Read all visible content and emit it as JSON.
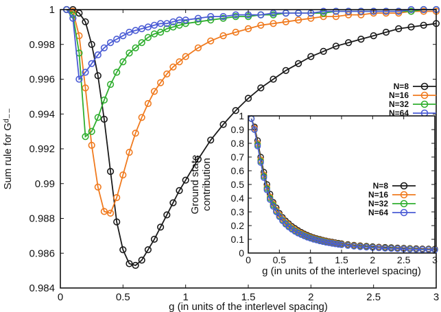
{
  "chart_data": [
    {
      "type": "line",
      "xlabel": "g (in units of the interlevel spacing)",
      "ylabel": "Sum rule for Gᵈ₋₋",
      "xlim": [
        0,
        3
      ],
      "ylim": [
        0.984,
        1
      ],
      "xticks": [
        "0",
        "0.5",
        "1",
        "1.5",
        "2",
        "2.5",
        "3"
      ],
      "yticks": [
        "0.984",
        "0.986",
        "0.988",
        "0.99",
        "0.992",
        "0.994",
        "0.996",
        "0.998",
        "1"
      ],
      "legend_position": "right",
      "series": [
        {
          "name": "N=8",
          "color": "#1a1a1a",
          "x": [
            0.05,
            0.1,
            0.15,
            0.2,
            0.25,
            0.3,
            0.35,
            0.4,
            0.45,
            0.5,
            0.55,
            0.6,
            0.65,
            0.7,
            0.75,
            0.8,
            0.85,
            0.9,
            0.95,
            1.0,
            1.1,
            1.2,
            1.3,
            1.4,
            1.5,
            1.6,
            1.7,
            1.8,
            1.9,
            2.0,
            2.1,
            2.2,
            2.3,
            2.4,
            2.5,
            2.6,
            2.7,
            2.8,
            2.9,
            3.0
          ],
          "y": [
            1.0,
            1.0,
            0.9998,
            0.9993,
            0.998,
            0.9962,
            0.9937,
            0.9907,
            0.9878,
            0.9862,
            0.9854,
            0.9853,
            0.9856,
            0.9862,
            0.9868,
            0.9875,
            0.9882,
            0.9889,
            0.9896,
            0.9902,
            0.9914,
            0.9925,
            0.9934,
            0.9942,
            0.9949,
            0.9955,
            0.996,
            0.9965,
            0.9969,
            0.9973,
            0.9976,
            0.9979,
            0.9981,
            0.9983,
            0.9985,
            0.9987,
            0.9989,
            0.999,
            0.9991,
            0.9992
          ]
        },
        {
          "name": "N=16",
          "color": "#f07a1e",
          "x": [
            0.05,
            0.1,
            0.15,
            0.2,
            0.25,
            0.3,
            0.35,
            0.4,
            0.45,
            0.5,
            0.55,
            0.6,
            0.65,
            0.7,
            0.75,
            0.8,
            0.85,
            0.9,
            0.95,
            1.0,
            1.1,
            1.2,
            1.3,
            1.4,
            1.5,
            1.6,
            1.7,
            1.8,
            1.9,
            2.0,
            2.1,
            2.2,
            2.3,
            2.4,
            2.5,
            2.6,
            2.7,
            2.8,
            2.9,
            3.0
          ],
          "y": [
            1.0,
            0.9999,
            0.9985,
            0.9955,
            0.9922,
            0.9898,
            0.9884,
            0.9883,
            0.9892,
            0.9905,
            0.9918,
            0.9929,
            0.9938,
            0.9946,
            0.9953,
            0.9958,
            0.9963,
            0.9967,
            0.997,
            0.9973,
            0.9978,
            0.9982,
            0.9985,
            0.9987,
            0.9989,
            0.9991,
            0.9992,
            0.9993,
            0.9994,
            0.9995,
            0.9996,
            0.9996,
            0.9997,
            0.9997,
            0.9998,
            0.9998,
            0.9998,
            0.9999,
            0.9999,
            0.9999
          ]
        },
        {
          "name": "N=32",
          "color": "#2fae2f",
          "x": [
            0.05,
            0.1,
            0.15,
            0.2,
            0.25,
            0.3,
            0.35,
            0.4,
            0.45,
            0.5,
            0.55,
            0.6,
            0.65,
            0.7,
            0.75,
            0.8,
            0.85,
            0.9,
            0.95,
            1.0,
            1.1,
            1.2,
            1.3,
            1.4,
            1.5,
            1.6,
            1.7,
            1.8,
            1.9,
            2.0,
            2.1,
            2.2,
            2.3,
            2.4,
            2.5,
            2.6,
            2.7,
            2.8,
            2.9,
            3.0
          ],
          "y": [
            1.0,
            0.9997,
            0.9975,
            0.9927,
            0.993,
            0.9938,
            0.9948,
            0.9957,
            0.9964,
            0.997,
            0.9975,
            0.9978,
            0.9981,
            0.9984,
            0.9986,
            0.9987,
            0.9989,
            0.999,
            0.9991,
            0.9992,
            0.9993,
            0.9994,
            0.9995,
            0.9996,
            0.9996,
            0.9997,
            0.9997,
            0.9998,
            0.9998,
            0.9998,
            0.9998,
            0.9999,
            0.9999,
            0.9999,
            0.9999,
            0.9999,
            0.9999,
            0.9999,
            1.0,
            1.0
          ]
        },
        {
          "name": "N=64",
          "color": "#4a5bd4",
          "x": [
            0.05,
            0.1,
            0.15,
            0.2,
            0.25,
            0.3,
            0.35,
            0.4,
            0.45,
            0.5,
            0.55,
            0.6,
            0.65,
            0.7,
            0.75,
            0.8,
            0.85,
            0.9,
            0.95,
            1.0,
            1.1,
            1.2,
            1.3,
            1.4,
            1.5,
            1.6,
            1.7,
            1.8,
            1.9,
            2.0,
            2.1,
            2.2,
            2.3,
            2.4,
            2.5,
            2.6,
            2.7,
            2.8,
            2.9,
            3.0
          ],
          "y": [
            1.0,
            0.9995,
            0.996,
            0.9964,
            0.9969,
            0.9974,
            0.9978,
            0.9981,
            0.9983,
            0.9985,
            0.9987,
            0.9988,
            0.9989,
            0.999,
            0.9991,
            0.9992,
            0.9992,
            0.9993,
            0.9994,
            0.9994,
            0.9995,
            0.9996,
            0.9996,
            0.9997,
            0.9997,
            0.9997,
            0.9998,
            0.9998,
            0.9998,
            0.9998,
            0.9999,
            0.9999,
            0.9999,
            0.9999,
            0.9999,
            0.9999,
            0.9999,
            1.0,
            1.0,
            1.0
          ]
        }
      ]
    },
    {
      "type": "line",
      "xlabel": "g (in units of the interlevel spacing)",
      "ylabel_lines": [
        "Ground state",
        "contribution"
      ],
      "xlim": [
        0,
        3
      ],
      "ylim": [
        0,
        1
      ],
      "xticks": [
        "0",
        "0.5",
        "1",
        "1.5",
        "2",
        "2.5",
        "3"
      ],
      "yticks": [
        "0",
        "0.1",
        "0.2",
        "0.3",
        "0.4",
        "0.5",
        "0.6",
        "0.7",
        "0.8",
        "0.9",
        "1"
      ],
      "legend_position": "right",
      "series": [
        {
          "name": "N=8",
          "color": "#1a1a1a",
          "x": [
            0.05,
            0.1,
            0.15,
            0.2,
            0.25,
            0.3,
            0.35,
            0.4,
            0.45,
            0.5,
            0.55,
            0.6,
            0.65,
            0.7,
            0.75,
            0.8,
            0.85,
            0.9,
            0.95,
            1.0,
            1.05,
            1.1,
            1.15,
            1.2,
            1.25,
            1.3,
            1.35,
            1.4,
            1.45,
            1.5,
            1.6,
            1.7,
            1.8,
            1.9,
            2.0,
            2.1,
            2.2,
            2.3,
            2.4,
            2.5,
            2.6,
            2.7,
            2.8,
            2.9,
            3.0
          ],
          "y": [
            0.98,
            0.92,
            0.82,
            0.7,
            0.59,
            0.5,
            0.43,
            0.37,
            0.33,
            0.29,
            0.26,
            0.235,
            0.215,
            0.195,
            0.18,
            0.165,
            0.152,
            0.14,
            0.13,
            0.121,
            0.113,
            0.106,
            0.1,
            0.094,
            0.089,
            0.084,
            0.08,
            0.076,
            0.072,
            0.069,
            0.063,
            0.058,
            0.054,
            0.05,
            0.047,
            0.044,
            0.042,
            0.04,
            0.038,
            0.036,
            0.034,
            0.033,
            0.031,
            0.03,
            0.029
          ]
        },
        {
          "name": "N=16",
          "color": "#f07a1e",
          "x": [
            0.05,
            0.1,
            0.15,
            0.2,
            0.25,
            0.3,
            0.35,
            0.4,
            0.45,
            0.5,
            0.55,
            0.6,
            0.65,
            0.7,
            0.75,
            0.8,
            0.85,
            0.9,
            0.95,
            1.0,
            1.05,
            1.1,
            1.15,
            1.2,
            1.25,
            1.3,
            1.35,
            1.4,
            1.45,
            1.5,
            1.6,
            1.7,
            1.8,
            1.9,
            2.0,
            2.1,
            2.2,
            2.3,
            2.4,
            2.5,
            2.6,
            2.7,
            2.8,
            2.9,
            3.0
          ],
          "y": [
            0.98,
            0.91,
            0.8,
            0.68,
            0.57,
            0.48,
            0.41,
            0.36,
            0.315,
            0.28,
            0.25,
            0.225,
            0.205,
            0.186,
            0.171,
            0.157,
            0.145,
            0.134,
            0.124,
            0.116,
            0.108,
            0.101,
            0.095,
            0.09,
            0.085,
            0.08,
            0.076,
            0.072,
            0.068,
            0.065,
            0.059,
            0.054,
            0.05,
            0.046,
            0.043,
            0.041,
            0.038,
            0.036,
            0.034,
            0.032,
            0.031,
            0.029,
            0.028,
            0.027,
            0.026
          ]
        },
        {
          "name": "N=32",
          "color": "#2fae2f",
          "x": [
            0.05,
            0.1,
            0.15,
            0.2,
            0.25,
            0.3,
            0.35,
            0.4,
            0.45,
            0.5,
            0.55,
            0.6,
            0.65,
            0.7,
            0.75,
            0.8,
            0.85,
            0.9,
            0.95,
            1.0,
            1.05,
            1.1,
            1.15,
            1.2,
            1.25,
            1.3,
            1.35,
            1.4,
            1.45,
            1.5,
            1.6,
            1.7,
            1.8,
            1.9,
            2.0,
            2.1,
            2.2,
            2.3,
            2.4,
            2.5,
            2.6,
            2.7,
            2.8,
            2.9,
            3.0
          ],
          "y": [
            0.98,
            0.9,
            0.79,
            0.67,
            0.56,
            0.47,
            0.4,
            0.35,
            0.305,
            0.27,
            0.24,
            0.216,
            0.196,
            0.178,
            0.163,
            0.15,
            0.138,
            0.128,
            0.119,
            0.111,
            0.103,
            0.097,
            0.091,
            0.086,
            0.081,
            0.076,
            0.072,
            0.068,
            0.065,
            0.062,
            0.056,
            0.051,
            0.047,
            0.044,
            0.041,
            0.038,
            0.036,
            0.034,
            0.032,
            0.03,
            0.029,
            0.027,
            0.026,
            0.025,
            0.024
          ]
        },
        {
          "name": "N=64",
          "color": "#4a5bd4",
          "x": [
            0.05,
            0.1,
            0.15,
            0.2,
            0.25,
            0.3,
            0.35,
            0.4,
            0.45,
            0.5,
            0.55,
            0.6,
            0.65,
            0.7,
            0.75,
            0.8,
            0.85,
            0.9,
            0.95,
            1.0,
            1.05,
            1.1,
            1.15,
            1.2,
            1.25,
            1.3,
            1.35,
            1.4,
            1.45,
            1.5,
            1.6,
            1.7,
            1.8,
            1.9,
            2.0,
            2.1,
            2.2,
            2.3,
            2.4,
            2.5,
            2.6,
            2.7,
            2.8,
            2.9,
            3.0
          ],
          "y": [
            0.98,
            0.9,
            0.78,
            0.66,
            0.55,
            0.46,
            0.39,
            0.34,
            0.3,
            0.265,
            0.235,
            0.21,
            0.19,
            0.173,
            0.158,
            0.145,
            0.134,
            0.124,
            0.115,
            0.107,
            0.1,
            0.094,
            0.088,
            0.083,
            0.078,
            0.074,
            0.07,
            0.066,
            0.063,
            0.06,
            0.054,
            0.049,
            0.045,
            0.042,
            0.039,
            0.037,
            0.034,
            0.032,
            0.031,
            0.029,
            0.027,
            0.026,
            0.025,
            0.024,
            0.023
          ]
        }
      ]
    }
  ]
}
